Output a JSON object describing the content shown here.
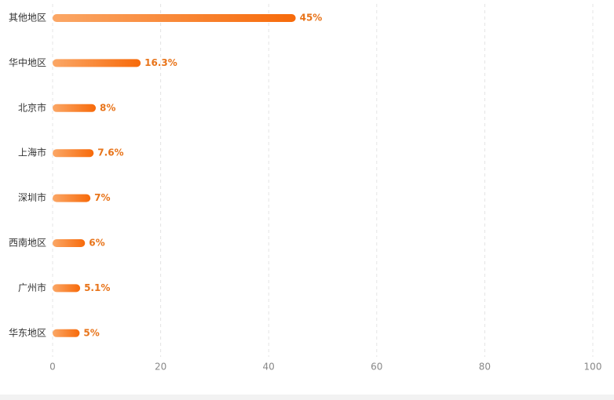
{
  "chart_data": {
    "type": "bar",
    "orientation": "horizontal",
    "categories": [
      "其他地区",
      "华中地区",
      "北京市",
      "上海市",
      "深圳市",
      "西南地区",
      "广州市",
      "华东地区"
    ],
    "values": [
      45,
      16.3,
      8,
      7.6,
      7,
      6,
      5.1,
      5
    ],
    "value_labels": [
      "45%",
      "16.3%",
      "8%",
      "7.6%",
      "7%",
      "6%",
      "5.1%",
      "5%"
    ],
    "colors": [
      "#fba766",
      "#f76a0a"
    ],
    "xlim": [
      0,
      100
    ],
    "xticks": [
      0,
      20,
      40,
      60,
      80,
      100
    ],
    "grid": true
  }
}
